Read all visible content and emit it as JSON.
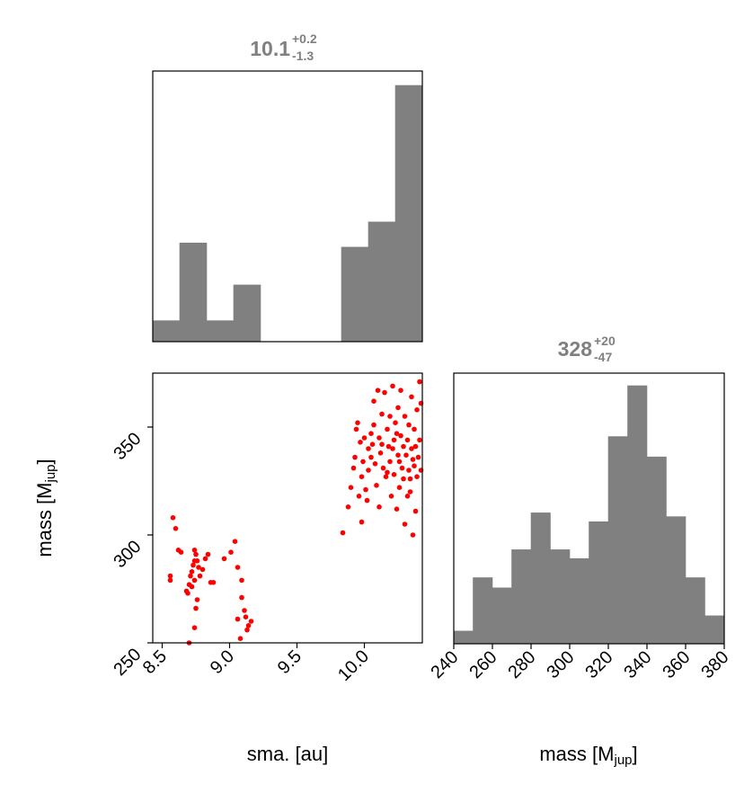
{
  "chart_data": [
    {
      "panel": "sma-marginal",
      "type": "bar",
      "title": {
        "median": "10.1",
        "plus": "+0.2",
        "minus": "-1.3"
      },
      "x": {
        "bin_edges": [
          8.43,
          8.63,
          8.83,
          9.03,
          9.23,
          9.43,
          9.63,
          9.83,
          10.03,
          10.23,
          10.43
        ],
        "range": [
          8.43,
          10.43
        ]
      },
      "values": [
        1,
        4.7,
        1,
        2.7,
        0,
        0,
        0,
        4.5,
        5.7,
        12.2
      ],
      "show_axes": false
    },
    {
      "panel": "sma-mass-scatter",
      "type": "scatter",
      "xlabel": "sma. [au]",
      "ylabel": {
        "base": "mass [M",
        "sub": "jup",
        "close": "]"
      },
      "xlim": [
        8.43,
        10.43
      ],
      "ylim": [
        250,
        375
      ],
      "xticks": [
        "8.5",
        "9.0",
        "9.5",
        "10.0"
      ],
      "yticks": [
        "250",
        "300",
        "350"
      ],
      "points": [
        [
          8.58,
          308
        ],
        [
          8.6,
          303
        ],
        [
          8.56,
          281
        ],
        [
          8.56,
          279
        ],
        [
          8.62,
          293
        ],
        [
          8.64,
          292
        ],
        [
          8.68,
          274
        ],
        [
          8.69,
          273
        ],
        [
          8.7,
          277
        ],
        [
          8.71,
          281
        ],
        [
          8.72,
          283
        ],
        [
          8.73,
          286
        ],
        [
          8.74,
          288
        ],
        [
          8.74,
          293
        ],
        [
          8.75,
          291
        ],
        [
          8.76,
          288
        ],
        [
          8.77,
          285
        ],
        [
          8.78,
          281
        ],
        [
          8.72,
          276
        ],
        [
          8.74,
          279
        ],
        [
          8.76,
          270
        ],
        [
          8.75,
          266
        ],
        [
          8.74,
          257
        ],
        [
          8.7,
          250
        ],
        [
          8.8,
          284
        ],
        [
          8.82,
          289
        ],
        [
          8.84,
          291
        ],
        [
          8.86,
          278
        ],
        [
          8.88,
          278
        ],
        [
          8.96,
          289
        ],
        [
          9.01,
          292
        ],
        [
          9.04,
          297
        ],
        [
          9.06,
          285
        ],
        [
          9.09,
          279
        ],
        [
          9.09,
          271
        ],
        [
          9.11,
          265
        ],
        [
          9.12,
          262
        ],
        [
          9.14,
          258
        ],
        [
          9.16,
          260
        ],
        [
          9.08,
          252
        ],
        [
          9.06,
          261
        ],
        [
          9.13,
          256
        ],
        [
          9.84,
          301
        ],
        [
          9.88,
          313
        ],
        [
          9.9,
          322
        ],
        [
          9.92,
          331
        ],
        [
          9.93,
          336
        ],
        [
          9.94,
          349
        ],
        [
          9.95,
          352
        ],
        [
          9.96,
          318
        ],
        [
          9.97,
          343
        ],
        [
          9.98,
          306
        ],
        [
          9.98,
          327
        ],
        [
          9.99,
          334
        ],
        [
          10.0,
          345
        ],
        [
          10.01,
          321
        ],
        [
          10.02,
          316
        ],
        [
          10.03,
          330
        ],
        [
          10.05,
          336
        ],
        [
          10.06,
          342
        ],
        [
          10.07,
          351
        ],
        [
          10.08,
          333
        ],
        [
          10.09,
          323
        ],
        [
          10.1,
          367
        ],
        [
          10.11,
          345
        ],
        [
          10.12,
          338
        ],
        [
          10.13,
          356
        ],
        [
          10.14,
          331
        ],
        [
          10.15,
          366
        ],
        [
          10.16,
          327
        ],
        [
          10.17,
          349
        ],
        [
          10.18,
          341
        ],
        [
          10.19,
          334
        ],
        [
          10.2,
          318
        ],
        [
          10.21,
          369
        ],
        [
          10.22,
          328
        ],
        [
          10.22,
          344
        ],
        [
          10.23,
          352
        ],
        [
          10.24,
          312
        ],
        [
          10.25,
          337
        ],
        [
          10.25,
          359
        ],
        [
          10.26,
          322
        ],
        [
          10.27,
          346
        ],
        [
          10.27,
          367
        ],
        [
          10.28,
          331
        ],
        [
          10.29,
          326
        ],
        [
          10.29,
          341
        ],
        [
          10.3,
          305
        ],
        [
          10.3,
          355
        ],
        [
          10.31,
          337
        ],
        [
          10.32,
          318
        ],
        [
          10.32,
          344
        ],
        [
          10.33,
          330
        ],
        [
          10.33,
          351
        ],
        [
          10.34,
          326
        ],
        [
          10.35,
          340
        ],
        [
          10.35,
          364
        ],
        [
          10.36,
          300
        ],
        [
          10.37,
          332
        ],
        [
          10.37,
          349
        ],
        [
          10.38,
          341
        ],
        [
          10.39,
          327
        ],
        [
          10.39,
          358
        ],
        [
          10.4,
          336
        ],
        [
          10.41,
          344
        ],
        [
          10.41,
          371
        ],
        [
          10.42,
          361
        ],
        [
          10.42,
          330
        ],
        [
          10.43,
          377
        ],
        [
          10.38,
          311
        ],
        [
          10.36,
          335
        ],
        [
          10.34,
          320
        ],
        [
          10.26,
          334
        ],
        [
          10.24,
          347
        ],
        [
          10.21,
          340
        ],
        [
          10.19,
          355
        ],
        [
          10.17,
          329
        ],
        [
          10.13,
          342
        ],
        [
          10.11,
          313
        ],
        [
          10.07,
          362
        ],
        [
          10.05,
          347
        ],
        [
          10.03,
          340
        ]
      ]
    },
    {
      "panel": "mass-marginal",
      "type": "bar",
      "title": {
        "median": "328",
        "plus": "+20",
        "minus": "-47"
      },
      "xlabel": {
        "base": "mass [M",
        "sub": "jup",
        "close": "]"
      },
      "x": {
        "bin_edges": [
          240,
          250,
          260,
          270,
          280,
          290,
          300,
          310,
          320,
          330,
          340,
          350,
          360,
          370,
          380
        ],
        "range": [
          240,
          380
        ]
      },
      "xticks": [
        "240",
        "260",
        "280",
        "300",
        "320",
        "340",
        "360",
        "380"
      ],
      "values": [
        1.0,
        5.2,
        4.4,
        7.4,
        10.3,
        7.4,
        6.7,
        9.6,
        16.3,
        20.3,
        14.7,
        10.0,
        5.2,
        2.2
      ]
    }
  ]
}
